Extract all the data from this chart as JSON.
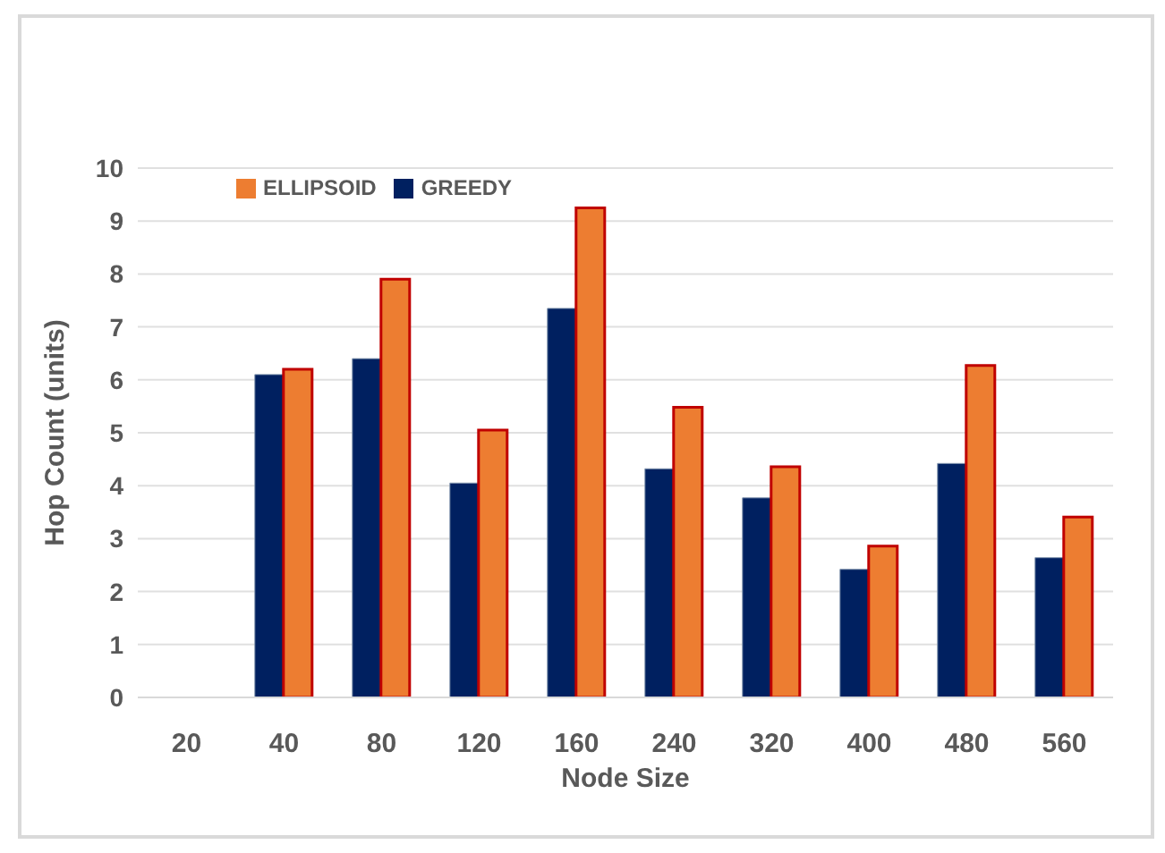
{
  "chart_data": {
    "type": "bar",
    "xlabel": "Node Size",
    "ylabel": "Hop Count (units)",
    "categories": [
      "20",
      "40",
      "80",
      "120",
      "160",
      "240",
      "320",
      "400",
      "480",
      "560"
    ],
    "series": [
      {
        "name": "GREEDY",
        "color": "#002060",
        "values": [
          null,
          6.1,
          6.4,
          4.05,
          7.35,
          4.32,
          3.77,
          2.42,
          4.42,
          2.64
        ]
      },
      {
        "name": "ELLIPSOID",
        "color": "#ed7d31",
        "values": [
          null,
          6.2,
          7.9,
          5.05,
          9.25,
          5.48,
          4.36,
          2.86,
          6.27,
          3.41
        ]
      }
    ],
    "ylim": [
      0,
      10
    ],
    "yticks": [
      0,
      1,
      2,
      3,
      4,
      5,
      6,
      7,
      8,
      9,
      10
    ],
    "grid": "y",
    "legend": "top left"
  }
}
